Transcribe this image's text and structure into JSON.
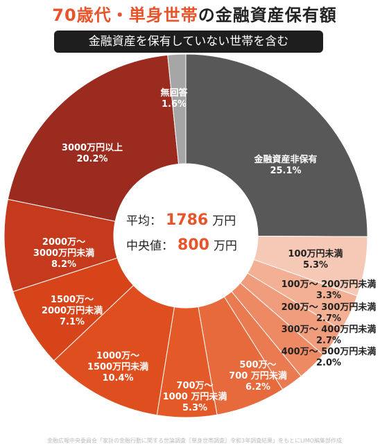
{
  "title": {
    "part1": "70歳代・単身世帯",
    "part2": "の金融資産保有額"
  },
  "subtitle": "金融資産を保有していない世帯を含む",
  "center": {
    "avg_label": "平均：",
    "avg_value": "1786",
    "avg_unit": "万円",
    "median_label": "中央値：",
    "median_value": "800",
    "median_unit": "万円"
  },
  "source": "金融広報中央委員会「家計の金融行動に関する世論調査［単身世帯調査］令和3年調査結果」をもとにLIMO編集部作成",
  "chart_data": {
    "type": "pie",
    "title": "70歳代・単身世帯の金融資産保有額",
    "subtitle": "金融資産を保有していない世帯を含む",
    "unit": "%",
    "categories": [
      "金融資産非保有",
      "100万円未満",
      "100万～200万円未満",
      "200万～300万円未満",
      "300万～400万円未満",
      "400万～500万円未満",
      "500万～700万円未満",
      "700万～1000万円未満",
      "1000万～1500万円未満",
      "1500万～2000万円未満",
      "2000万～3000万円未満",
      "3000万円以上",
      "無回答"
    ],
    "values": [
      25.1,
      5.3,
      3.3,
      2.7,
      2.7,
      2.0,
      6.2,
      5.3,
      10.4,
      7.1,
      8.2,
      20.2,
      1.6
    ],
    "labels": [
      [
        "金融資産非保有",
        "25.1%"
      ],
      [
        "100万円未満",
        "5.3%"
      ],
      [
        "100万～ 200万円未満",
        "3.3%"
      ],
      [
        "200万～ 300万円未満",
        "2.7%"
      ],
      [
        "300万～ 400万円未満",
        "2.7%"
      ],
      [
        "400万～ 500万円未満",
        "2.0%"
      ],
      [
        "500万～",
        "700 万円未満",
        "6.2%"
      ],
      [
        "700万～",
        "1000 万円未満",
        "5.3%"
      ],
      [
        "1000万～",
        "1500万円未満",
        "10.4%"
      ],
      [
        "1500万～",
        "2000万円未満",
        "7.1%"
      ],
      [
        "2000万～",
        "3000万円未満",
        "8.2%"
      ],
      [
        "3000万円以上",
        "20.2%"
      ],
      [
        "無回答",
        "1.6%"
      ]
    ],
    "colors": [
      "#585858",
      "#f6c8b6",
      "#f3b094",
      "#f09d7d",
      "#ed8a64",
      "#ea7a50",
      "#e66a3c",
      "#e35a28",
      "#df4e1e",
      "#d7441a",
      "#c53a1c",
      "#9b2b1f",
      "#a6a6a6"
    ],
    "label_colors": [
      "#ffffff",
      "#222222",
      "#222222",
      "#222222",
      "#222222",
      "#222222",
      "#ffffff",
      "#ffffff",
      "#ffffff",
      "#ffffff",
      "#ffffff",
      "#ffffff",
      "#ffffff"
    ],
    "start": "12 o'clock, clockwise"
  }
}
